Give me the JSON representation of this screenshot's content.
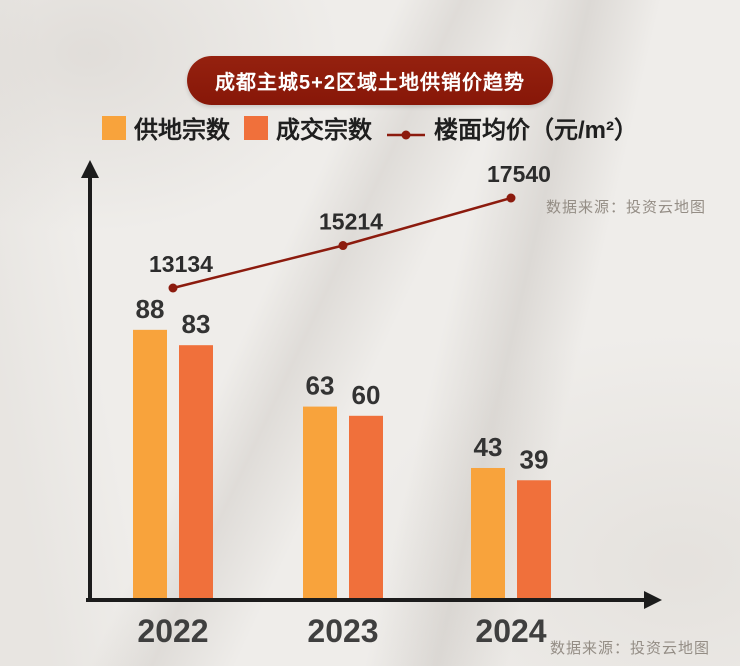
{
  "title": "成都主城5+2区域土地供销价趋势",
  "source_top": "数据来源：投资云地图",
  "source_bottom": "数据来源：投资云地图",
  "legend": [
    {
      "label": "供地宗数",
      "color": "#F8A33C",
      "type": "square"
    },
    {
      "label": "成交宗数",
      "color": "#F0703B",
      "type": "square"
    },
    {
      "label": "楼面均价（元/m²）",
      "color": "#8C1B0E",
      "type": "line"
    }
  ],
  "colors": {
    "supply_bar": "#F8A33C",
    "deal_bar": "#F0703B",
    "price_line": "#8C1B0E",
    "title_badge": "#8E1A0C",
    "axis": "#1c1c1c",
    "value_label": "#333333",
    "year_label": "#3f3f3f",
    "source_text": "#948d85"
  },
  "chart_data": {
    "type": "bar",
    "subtype": "grouped bars with overlaid line",
    "title": "成都主城5+2区域土地供销价趋势",
    "categories": [
      "2022",
      "2023",
      "2024"
    ],
    "series": [
      {
        "name": "供地宗数",
        "type": "bar",
        "color": "#F8A33C",
        "values": [
          88,
          63,
          43
        ]
      },
      {
        "name": "成交宗数",
        "type": "bar",
        "color": "#F0703B",
        "values": [
          83,
          60,
          39
        ]
      },
      {
        "name": "楼面均价（元/m²）",
        "type": "line",
        "color": "#8C1B0E",
        "values": [
          13134,
          15214,
          17540
        ]
      }
    ],
    "xlabel": "",
    "ylabel": "",
    "grid": false,
    "legend_position": "top",
    "data_labels": true,
    "source": "数据来源：投资云地图"
  }
}
